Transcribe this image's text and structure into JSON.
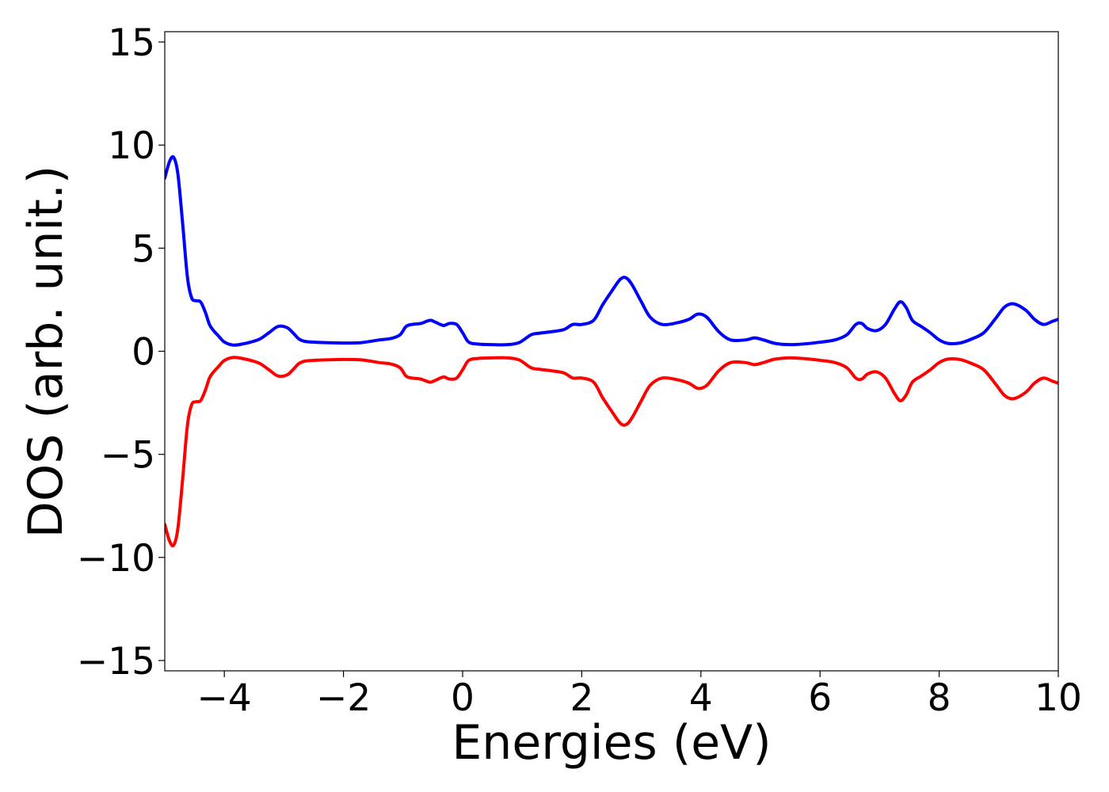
{
  "chart_data": {
    "type": "line",
    "title": "",
    "xlabel": "Energies (eV)",
    "ylabel": "DOS (arb. unit.)",
    "xlim": [
      -5,
      10
    ],
    "ylim": [
      -15.5,
      15.5
    ],
    "xticks": [
      -4,
      -2,
      0,
      2,
      4,
      6,
      8,
      10
    ],
    "yticks": [
      -15,
      -10,
      -5,
      0,
      5,
      10,
      15
    ],
    "xtick_labels": [
      "−4",
      "−2",
      "0",
      "2",
      "4",
      "6",
      "8",
      "10"
    ],
    "ytick_labels": [
      "−15",
      "−10",
      "−5",
      "0",
      "5",
      "10",
      "15"
    ],
    "grid": false,
    "legend": "none",
    "series": [
      {
        "color": "#0000ff",
        "x": [
          -5.0,
          -4.92,
          -4.85,
          -4.78,
          -4.7,
          -4.62,
          -4.55,
          -4.48,
          -4.4,
          -4.32,
          -4.25,
          -4.18,
          -4.1,
          -4.0,
          -3.85,
          -3.7,
          -3.55,
          -3.4,
          -3.25,
          -3.1,
          -2.95,
          -2.85,
          -2.75,
          -2.65,
          -2.5,
          -2.3,
          -2.0,
          -1.7,
          -1.4,
          -1.2,
          -1.05,
          -0.95,
          -0.85,
          -0.7,
          -0.55,
          -0.45,
          -0.32,
          -0.22,
          -0.1,
          0.0,
          0.1,
          0.25,
          0.5,
          0.75,
          0.95,
          1.15,
          1.3,
          1.5,
          1.7,
          1.85,
          2.0,
          2.2,
          2.35,
          2.5,
          2.65,
          2.75,
          2.85,
          3.0,
          3.15,
          3.35,
          3.6,
          3.8,
          3.95,
          4.1,
          4.3,
          4.5,
          4.75,
          4.9,
          5.05,
          5.25,
          5.5,
          5.75,
          6.0,
          6.25,
          6.45,
          6.6,
          6.7,
          6.8,
          6.95,
          7.1,
          7.25,
          7.35,
          7.45,
          7.55,
          7.7,
          7.85,
          8.0,
          8.15,
          8.35,
          8.55,
          8.75,
          8.95,
          9.1,
          9.25,
          9.45,
          9.6,
          9.75,
          9.9,
          10.0
        ],
        "values": [
          8.4,
          9.2,
          9.4,
          8.6,
          6.2,
          3.6,
          2.6,
          2.45,
          2.4,
          1.9,
          1.3,
          1.0,
          0.75,
          0.45,
          0.3,
          0.35,
          0.45,
          0.6,
          0.9,
          1.2,
          1.15,
          0.9,
          0.6,
          0.48,
          0.44,
          0.42,
          0.4,
          0.42,
          0.55,
          0.62,
          0.8,
          1.2,
          1.3,
          1.35,
          1.5,
          1.4,
          1.25,
          1.35,
          1.3,
          0.9,
          0.45,
          0.35,
          0.32,
          0.32,
          0.42,
          0.8,
          0.88,
          0.95,
          1.05,
          1.3,
          1.3,
          1.5,
          2.25,
          2.9,
          3.5,
          3.55,
          3.2,
          2.4,
          1.65,
          1.3,
          1.38,
          1.55,
          1.8,
          1.65,
          0.95,
          0.55,
          0.55,
          0.65,
          0.55,
          0.38,
          0.32,
          0.36,
          0.44,
          0.55,
          0.8,
          1.3,
          1.35,
          1.1,
          1.0,
          1.3,
          2.05,
          2.4,
          2.1,
          1.5,
          1.2,
          0.9,
          0.55,
          0.38,
          0.4,
          0.6,
          0.9,
          1.6,
          2.15,
          2.3,
          2.0,
          1.55,
          1.3,
          1.45,
          1.55
        ]
      },
      {
        "color": "#ff0000",
        "x": [
          -5.0,
          -4.92,
          -4.85,
          -4.78,
          -4.7,
          -4.62,
          -4.55,
          -4.48,
          -4.4,
          -4.32,
          -4.25,
          -4.18,
          -4.1,
          -4.0,
          -3.85,
          -3.7,
          -3.55,
          -3.4,
          -3.25,
          -3.1,
          -2.95,
          -2.85,
          -2.75,
          -2.65,
          -2.5,
          -2.3,
          -2.0,
          -1.7,
          -1.4,
          -1.2,
          -1.05,
          -0.95,
          -0.85,
          -0.7,
          -0.55,
          -0.45,
          -0.32,
          -0.22,
          -0.1,
          0.0,
          0.1,
          0.25,
          0.5,
          0.75,
          0.95,
          1.15,
          1.3,
          1.5,
          1.7,
          1.85,
          2.0,
          2.2,
          2.35,
          2.5,
          2.65,
          2.75,
          2.85,
          3.0,
          3.15,
          3.35,
          3.6,
          3.8,
          3.95,
          4.1,
          4.3,
          4.5,
          4.75,
          4.9,
          5.05,
          5.25,
          5.5,
          5.75,
          6.0,
          6.25,
          6.45,
          6.6,
          6.7,
          6.8,
          6.95,
          7.1,
          7.25,
          7.35,
          7.45,
          7.55,
          7.7,
          7.85,
          8.0,
          8.15,
          8.35,
          8.55,
          8.75,
          8.95,
          9.1,
          9.25,
          9.45,
          9.6,
          9.75,
          9.9,
          10.0
        ],
        "values": [
          -8.4,
          -9.2,
          -9.4,
          -8.6,
          -6.2,
          -3.6,
          -2.6,
          -2.45,
          -2.4,
          -1.9,
          -1.3,
          -1.0,
          -0.75,
          -0.45,
          -0.3,
          -0.35,
          -0.45,
          -0.6,
          -0.9,
          -1.2,
          -1.15,
          -0.9,
          -0.6,
          -0.48,
          -0.44,
          -0.42,
          -0.4,
          -0.42,
          -0.55,
          -0.62,
          -0.8,
          -1.2,
          -1.3,
          -1.35,
          -1.5,
          -1.4,
          -1.25,
          -1.35,
          -1.3,
          -0.9,
          -0.45,
          -0.35,
          -0.32,
          -0.32,
          -0.42,
          -0.8,
          -0.88,
          -0.95,
          -1.05,
          -1.3,
          -1.3,
          -1.5,
          -2.25,
          -2.9,
          -3.5,
          -3.55,
          -3.2,
          -2.4,
          -1.65,
          -1.3,
          -1.38,
          -1.55,
          -1.8,
          -1.65,
          -0.95,
          -0.55,
          -0.55,
          -0.65,
          -0.55,
          -0.38,
          -0.32,
          -0.36,
          -0.44,
          -0.55,
          -0.8,
          -1.3,
          -1.35,
          -1.1,
          -1.0,
          -1.3,
          -2.05,
          -2.4,
          -2.1,
          -1.5,
          -1.2,
          -0.9,
          -0.55,
          -0.38,
          -0.4,
          -0.6,
          -0.9,
          -1.6,
          -2.15,
          -2.3,
          -2.0,
          -1.55,
          -1.3,
          -1.45,
          -1.55
        ]
      }
    ]
  }
}
